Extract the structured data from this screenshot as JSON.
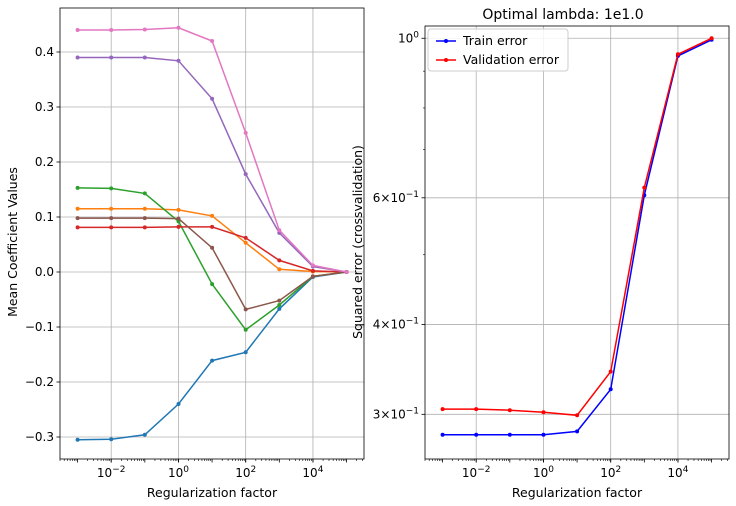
{
  "chart_data": [
    {
      "type": "line",
      "xscale": "log",
      "x": [
        0.001,
        0.01,
        0.1,
        1,
        10,
        100,
        1000,
        10000,
        100000
      ],
      "xlim": [
        0.0003,
        330000
      ],
      "ylim": [
        -0.34,
        0.48
      ],
      "xlabel": "Regularization factor",
      "ylabel": "Mean Coefficient Values",
      "x_ticks": [
        {
          "value": 0.01,
          "base": "10",
          "exp": "−2"
        },
        {
          "value": 1,
          "base": "10",
          "exp": "0"
        },
        {
          "value": 100,
          "base": "10",
          "exp": "2"
        },
        {
          "value": 10000,
          "base": "10",
          "exp": "4"
        }
      ],
      "y_ticks": [
        {
          "value": -0.3,
          "label": "−0.3"
        },
        {
          "value": -0.2,
          "label": "−0.2"
        },
        {
          "value": -0.1,
          "label": "−0.1"
        },
        {
          "value": 0.0,
          "label": "0.0"
        },
        {
          "value": 0.1,
          "label": "0.1"
        },
        {
          "value": 0.2,
          "label": "0.2"
        },
        {
          "value": 0.3,
          "label": "0.3"
        },
        {
          "value": 0.4,
          "label": "0.4"
        }
      ],
      "grid": true,
      "series": [
        {
          "color": "#1f77b4",
          "values": [
            -0.305,
            -0.304,
            -0.296,
            -0.24,
            -0.161,
            -0.146,
            -0.067,
            -0.009,
            0.0
          ]
        },
        {
          "color": "#ff7f0e",
          "values": [
            0.115,
            0.115,
            0.115,
            0.113,
            0.102,
            0.053,
            0.005,
            0.001,
            0.0
          ]
        },
        {
          "color": "#2ca02c",
          "values": [
            0.153,
            0.152,
            0.143,
            0.092,
            -0.022,
            -0.105,
            -0.06,
            -0.008,
            0.0
          ]
        },
        {
          "color": "#d62728",
          "values": [
            0.081,
            0.081,
            0.081,
            0.082,
            0.082,
            0.062,
            0.021,
            0.002,
            0.0
          ]
        },
        {
          "color": "#9467bd",
          "values": [
            0.39,
            0.39,
            0.39,
            0.384,
            0.315,
            0.178,
            0.071,
            0.01,
            0.0
          ]
        },
        {
          "color": "#8c564b",
          "values": [
            0.098,
            0.098,
            0.098,
            0.097,
            0.044,
            -0.068,
            -0.052,
            -0.008,
            0.0
          ]
        },
        {
          "color": "#e377c2",
          "values": [
            0.44,
            0.44,
            0.441,
            0.444,
            0.42,
            0.253,
            0.076,
            0.012,
            0.0
          ]
        }
      ]
    },
    {
      "type": "line",
      "xscale": "log",
      "yscale": "log",
      "title": "Optimal lambda: 1e1.0",
      "x": [
        0.001,
        0.01,
        0.1,
        1,
        10,
        100,
        1000,
        10000,
        100000
      ],
      "xlim": [
        0.0003,
        330000
      ],
      "ylim": [
        0.26,
        1.04
      ],
      "xlabel": "Regularization factor",
      "ylabel": "Squared error (crossvalidation)",
      "x_ticks": [
        {
          "value": 0.01,
          "base": "10",
          "exp": "−2"
        },
        {
          "value": 1,
          "base": "10",
          "exp": "0"
        },
        {
          "value": 100,
          "base": "10",
          "exp": "2"
        },
        {
          "value": 10000,
          "base": "10",
          "exp": "4"
        }
      ],
      "y_ticks": [
        {
          "value": 0.3,
          "base": "3×10",
          "exp": "−1"
        },
        {
          "value": 0.4,
          "base": "4×10",
          "exp": "−1"
        },
        {
          "value": 0.6,
          "base": "6×10",
          "exp": "−1"
        },
        {
          "value": 1.0,
          "base": "10",
          "exp": "0"
        }
      ],
      "y_minor_ticks": [
        0.5,
        0.7,
        0.8,
        0.9
      ],
      "grid": true,
      "legend_position": "top-left",
      "series": [
        {
          "name": "Train error",
          "color": "#0000ff",
          "values": [
            0.281,
            0.281,
            0.281,
            0.281,
            0.284,
            0.325,
            0.605,
            0.945,
            0.995
          ]
        },
        {
          "name": "Validation error",
          "color": "#ff0000",
          "values": [
            0.305,
            0.305,
            0.304,
            0.302,
            0.299,
            0.344,
            0.62,
            0.95,
            1.0
          ]
        }
      ]
    }
  ]
}
